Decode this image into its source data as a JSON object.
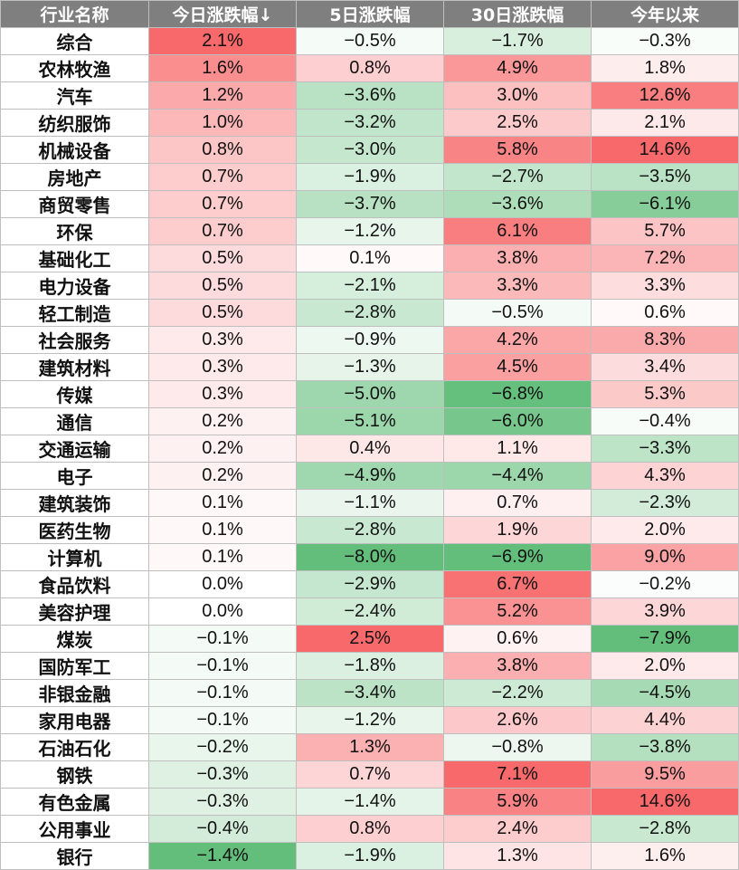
{
  "chart_data": {
    "type": "table",
    "columns": [
      "行业名称",
      "今日涨跌幅↓",
      "5日涨跌幅",
      "30日涨跌幅",
      "今年以来"
    ],
    "rows": [
      {
        "name": "综合",
        "values": [
          "2.1%",
          "−0.5%",
          "−1.7%",
          "−0.3%"
        ]
      },
      {
        "name": "农林牧渔",
        "values": [
          "1.6%",
          "0.8%",
          "4.9%",
          "1.8%"
        ]
      },
      {
        "name": "汽车",
        "values": [
          "1.2%",
          "−3.6%",
          "3.0%",
          "12.6%"
        ]
      },
      {
        "name": "纺织服饰",
        "values": [
          "1.0%",
          "−3.2%",
          "2.5%",
          "2.1%"
        ]
      },
      {
        "name": "机械设备",
        "values": [
          "0.8%",
          "−3.0%",
          "5.8%",
          "14.6%"
        ]
      },
      {
        "name": "房地产",
        "values": [
          "0.7%",
          "−1.9%",
          "−2.7%",
          "−3.5%"
        ]
      },
      {
        "name": "商贸零售",
        "values": [
          "0.7%",
          "−3.7%",
          "−3.6%",
          "−6.1%"
        ]
      },
      {
        "name": "环保",
        "values": [
          "0.7%",
          "−1.2%",
          "6.1%",
          "5.7%"
        ]
      },
      {
        "name": "基础化工",
        "values": [
          "0.5%",
          "0.1%",
          "3.8%",
          "7.2%"
        ]
      },
      {
        "name": "电力设备",
        "values": [
          "0.5%",
          "−2.1%",
          "3.3%",
          "3.3%"
        ]
      },
      {
        "name": "轻工制造",
        "values": [
          "0.5%",
          "−2.8%",
          "−0.5%",
          "0.6%"
        ]
      },
      {
        "name": "社会服务",
        "values": [
          "0.3%",
          "−0.9%",
          "4.2%",
          "8.3%"
        ]
      },
      {
        "name": "建筑材料",
        "values": [
          "0.3%",
          "−1.3%",
          "4.5%",
          "3.4%"
        ]
      },
      {
        "name": "传媒",
        "values": [
          "0.3%",
          "−5.0%",
          "−6.8%",
          "5.3%"
        ]
      },
      {
        "name": "通信",
        "values": [
          "0.2%",
          "−5.1%",
          "−6.0%",
          "−0.4%"
        ]
      },
      {
        "name": "交通运输",
        "values": [
          "0.2%",
          "0.4%",
          "1.1%",
          "−3.3%"
        ]
      },
      {
        "name": "电子",
        "values": [
          "0.2%",
          "−4.9%",
          "−4.4%",
          "4.3%"
        ]
      },
      {
        "name": "建筑装饰",
        "values": [
          "0.1%",
          "−1.1%",
          "0.7%",
          "−2.3%"
        ]
      },
      {
        "name": "医药生物",
        "values": [
          "0.1%",
          "−2.8%",
          "1.9%",
          "2.0%"
        ]
      },
      {
        "name": "计算机",
        "values": [
          "0.1%",
          "−8.0%",
          "−6.9%",
          "9.0%"
        ]
      },
      {
        "name": "食品饮料",
        "values": [
          "0.0%",
          "−2.9%",
          "6.7%",
          "−0.2%"
        ]
      },
      {
        "name": "美容护理",
        "values": [
          "0.0%",
          "−2.4%",
          "5.2%",
          "3.9%"
        ]
      },
      {
        "name": "煤炭",
        "values": [
          "−0.1%",
          "2.5%",
          "0.6%",
          "−7.9%"
        ]
      },
      {
        "name": "国防军工",
        "values": [
          "−0.1%",
          "−1.8%",
          "3.8%",
          "2.0%"
        ]
      },
      {
        "name": "非银金融",
        "values": [
          "−0.1%",
          "−3.4%",
          "−2.2%",
          "−4.5%"
        ]
      },
      {
        "name": "家用电器",
        "values": [
          "−0.1%",
          "−1.2%",
          "2.6%",
          "4.4%"
        ]
      },
      {
        "name": "石油石化",
        "values": [
          "−0.2%",
          "1.3%",
          "−0.8%",
          "−3.8%"
        ]
      },
      {
        "name": "钢铁",
        "values": [
          "−0.3%",
          "0.7%",
          "7.1%",
          "9.5%"
        ]
      },
      {
        "name": "有色金属",
        "values": [
          "−0.3%",
          "−1.4%",
          "5.9%",
          "14.6%"
        ]
      },
      {
        "name": "公用事业",
        "values": [
          "−0.4%",
          "0.8%",
          "2.4%",
          "−2.8%"
        ]
      },
      {
        "name": "银行",
        "values": [
          "−1.4%",
          "−1.9%",
          "1.3%",
          "1.6%"
        ]
      }
    ],
    "colors": {
      "positive": "#f8696b",
      "negative": "#63be7b",
      "neutral": "#ffffff",
      "header_bg": "#7f7f7f",
      "header_text": "#ffffff"
    }
  }
}
